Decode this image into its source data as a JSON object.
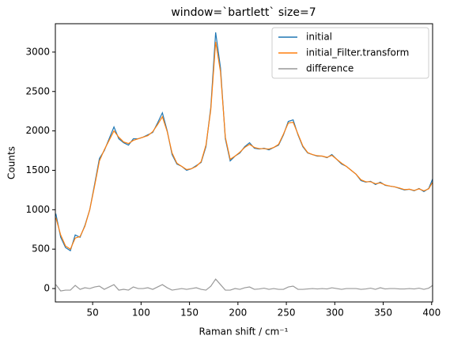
{
  "chart_data": {
    "type": "line",
    "title": "window=`bartlett` size=7",
    "x_label": "Raman shift / cm⁻¹",
    "y_label": "Counts",
    "x": [
      12,
      17,
      22,
      27,
      32,
      37,
      42,
      47,
      52,
      57,
      62,
      67,
      72,
      77,
      82,
      87,
      92,
      97,
      102,
      107,
      112,
      117,
      122,
      127,
      132,
      137,
      142,
      147,
      152,
      157,
      162,
      167,
      172,
      177,
      182,
      187,
      192,
      197,
      202,
      207,
      212,
      217,
      222,
      227,
      232,
      237,
      242,
      247,
      252,
      257,
      262,
      267,
      272,
      277,
      282,
      287,
      292,
      297,
      302,
      307,
      312,
      317,
      322,
      327,
      332,
      337,
      342,
      347,
      352,
      357,
      362,
      367,
      372,
      377,
      382,
      387,
      392,
      397,
      401
    ],
    "series": [
      {
        "name": "initial",
        "color": "#1f77b4",
        "values": [
          950,
          650,
          520,
          480,
          680,
          650,
          800,
          1000,
          1320,
          1650,
          1750,
          1900,
          2050,
          1900,
          1850,
          1820,
          1900,
          1900,
          1920,
          1950,
          1980,
          2100,
          2230,
          2000,
          1700,
          1580,
          1550,
          1500,
          1520,
          1560,
          1600,
          1800,
          2300,
          3250,
          2800,
          1900,
          1620,
          1680,
          1720,
          1800,
          1850,
          1780,
          1770,
          1780,
          1760,
          1790,
          1820,
          1950,
          2120,
          2140,
          1950,
          1800,
          1720,
          1700,
          1680,
          1680,
          1660,
          1700,
          1640,
          1580,
          1550,
          1500,
          1450,
          1370,
          1350,
          1360,
          1320,
          1350,
          1310,
          1300,
          1290,
          1270,
          1250,
          1260,
          1240,
          1270,
          1230,
          1270,
          1390
        ]
      },
      {
        "name": "initial_Filter.transform",
        "color": "#ff7f0e",
        "values": [
          900,
          680,
          540,
          500,
          640,
          660,
          790,
          1000,
          1300,
          1620,
          1760,
          1880,
          2000,
          1920,
          1860,
          1840,
          1880,
          1900,
          1920,
          1940,
          1990,
          2080,
          2180,
          1990,
          1720,
          1590,
          1550,
          1510,
          1520,
          1550,
          1610,
          1820,
          2270,
          3130,
          2750,
          1920,
          1640,
          1680,
          1730,
          1790,
          1830,
          1790,
          1775,
          1775,
          1770,
          1790,
          1830,
          1960,
          2100,
          2110,
          1960,
          1810,
          1725,
          1700,
          1685,
          1680,
          1665,
          1690,
          1640,
          1590,
          1550,
          1500,
          1450,
          1380,
          1355,
          1355,
          1330,
          1340,
          1315,
          1300,
          1290,
          1275,
          1255,
          1260,
          1245,
          1265,
          1240,
          1265,
          1350
        ]
      },
      {
        "name": "difference",
        "color": "#999999",
        "values": [
          50,
          -30,
          -20,
          -20,
          40,
          -10,
          10,
          0,
          20,
          30,
          -10,
          20,
          50,
          -20,
          -10,
          -20,
          20,
          0,
          0,
          10,
          -10,
          20,
          50,
          10,
          -20,
          -10,
          0,
          -10,
          0,
          10,
          -10,
          -20,
          30,
          120,
          50,
          -20,
          -20,
          0,
          -10,
          10,
          20,
          -10,
          -5,
          5,
          -10,
          0,
          -10,
          -10,
          20,
          30,
          -10,
          -10,
          -5,
          0,
          -5,
          0,
          -5,
          10,
          0,
          -10,
          0,
          0,
          0,
          -10,
          -5,
          5,
          -10,
          10,
          -5,
          0,
          0,
          -5,
          -5,
          0,
          -5,
          5,
          -10,
          5,
          40
        ]
      }
    ],
    "xlim": [
      11.5,
      401
    ],
    "ylim": [
      -170,
      3360
    ],
    "xticks": [
      50,
      100,
      150,
      200,
      250,
      300,
      350,
      400
    ],
    "yticks": [
      0,
      500,
      1000,
      1500,
      2000,
      2500,
      3000
    ],
    "legend": "upper right"
  }
}
